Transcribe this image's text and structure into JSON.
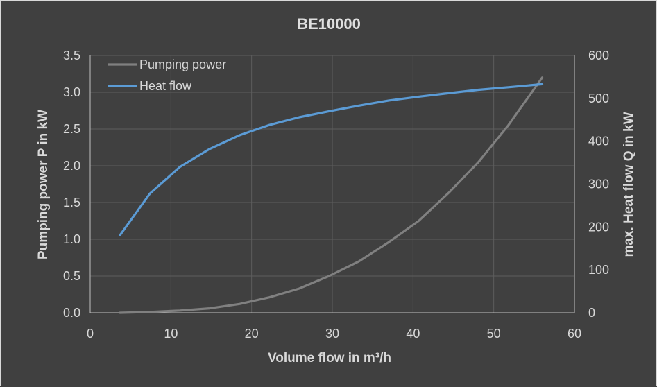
{
  "chart_data": {
    "type": "line",
    "title": "BE10000",
    "xlabel": "Volume flow in m³/h",
    "ylabel": "Pumping power P in kW",
    "y2label": "max. Heat flow Q in kW",
    "xlim": [
      0,
      60
    ],
    "ylim": [
      0,
      3.5
    ],
    "y2lim": [
      0,
      600
    ],
    "xticks": [
      "0",
      "10",
      "20",
      "30",
      "40",
      "50",
      "60"
    ],
    "yticks": [
      "0.0",
      "0.5",
      "1.0",
      "1.5",
      "2.0",
      "2.5",
      "3.0",
      "3.5"
    ],
    "y2ticks": [
      "0",
      "100",
      "200",
      "300",
      "400",
      "500",
      "600"
    ],
    "grid": true,
    "legend_position": "top-left",
    "series": [
      {
        "name": "Pumping power",
        "axis": "left",
        "color": "#808080",
        "x": [
          3.7,
          7.4,
          11.1,
          14.8,
          18.5,
          22.2,
          25.9,
          29.6,
          33.3,
          37,
          40.7,
          44.4,
          48.1,
          51.8,
          55.5,
          56
        ],
        "y": [
          0.0,
          0.01,
          0.03,
          0.06,
          0.12,
          0.21,
          0.33,
          0.5,
          0.7,
          0.96,
          1.25,
          1.63,
          2.05,
          2.55,
          3.12,
          3.2
        ]
      },
      {
        "name": "Heat flow",
        "axis": "right",
        "color": "#5b9bd5",
        "x": [
          3.7,
          7.4,
          11.1,
          14.8,
          18.5,
          22.2,
          25.9,
          29.6,
          33.3,
          37,
          40.7,
          44.4,
          48.1,
          51.8,
          56
        ],
        "y": [
          181,
          278,
          340,
          382,
          414,
          438,
          456,
          470,
          483,
          495,
          504,
          512,
          520,
          526,
          533
        ]
      }
    ]
  }
}
